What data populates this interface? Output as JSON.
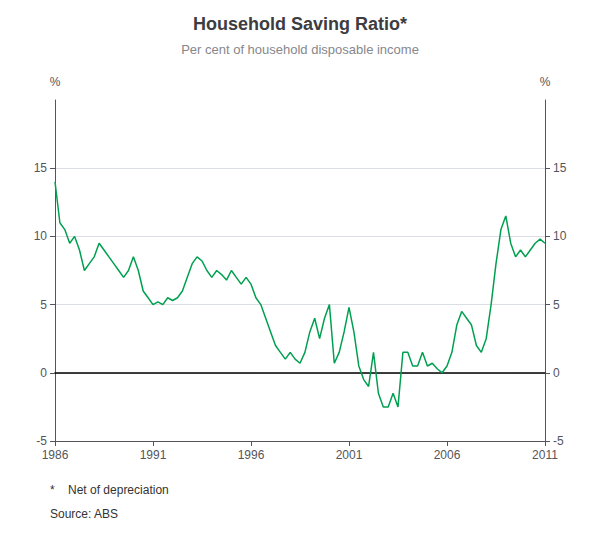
{
  "chart_data": {
    "type": "line",
    "title": "Household Saving Ratio*",
    "subtitle": "Per cent of household disposable income",
    "ylabel": "%",
    "y2label": "%",
    "annotations": [
      "*    Net of depreciation",
      "Source: ABS"
    ],
    "color": "#00A050",
    "grid": true,
    "xlim": [
      1986,
      2011
    ],
    "xticks": [
      1986,
      1991,
      1996,
      2001,
      2006,
      2011
    ],
    "ylim": [
      -5,
      20
    ],
    "yticks": [
      -5,
      0,
      5,
      10,
      15
    ],
    "y2lim": [
      -5,
      20
    ],
    "y2ticks": [
      -5,
      0,
      5,
      10,
      15
    ],
    "x": [
      1986.0,
      1986.25,
      1986.5,
      1986.75,
      1987.0,
      1987.25,
      1987.5,
      1987.75,
      1988.0,
      1988.25,
      1988.5,
      1988.75,
      1989.0,
      1989.25,
      1989.5,
      1989.75,
      1990.0,
      1990.25,
      1990.5,
      1990.75,
      1991.0,
      1991.25,
      1991.5,
      1991.75,
      1992.0,
      1992.25,
      1992.5,
      1992.75,
      1993.0,
      1993.25,
      1993.5,
      1993.75,
      1994.0,
      1994.25,
      1994.5,
      1994.75,
      1995.0,
      1995.25,
      1995.5,
      1995.75,
      1996.0,
      1996.25,
      1996.5,
      1996.75,
      1997.0,
      1997.25,
      1997.5,
      1997.75,
      1998.0,
      1998.25,
      1998.5,
      1998.75,
      1999.0,
      1999.25,
      1999.5,
      1999.75,
      2000.0,
      2000.25,
      2000.5,
      2000.75,
      2001.0,
      2001.25,
      2001.5,
      2001.75,
      2002.0,
      2002.25,
      2002.5,
      2002.75,
      2003.0,
      2003.25,
      2003.5,
      2003.75,
      2004.0,
      2004.25,
      2004.5,
      2004.75,
      2005.0,
      2005.25,
      2005.5,
      2005.75,
      2006.0,
      2006.25,
      2006.5,
      2006.75,
      2007.0,
      2007.25,
      2007.5,
      2007.75,
      2008.0,
      2008.25,
      2008.5,
      2008.75,
      2009.0,
      2009.25,
      2009.5,
      2009.75,
      2010.0,
      2010.25,
      2010.5,
      2010.75,
      2011.0
    ],
    "values": [
      14.0,
      11.0,
      10.5,
      9.5,
      10.0,
      9.0,
      7.5,
      8.0,
      8.5,
      9.5,
      9.0,
      8.5,
      8.0,
      7.5,
      7.0,
      7.5,
      8.5,
      7.5,
      6.0,
      5.5,
      5.0,
      5.2,
      5.0,
      5.5,
      5.3,
      5.5,
      6.0,
      7.0,
      8.0,
      8.5,
      8.2,
      7.5,
      7.0,
      7.5,
      7.2,
      6.8,
      7.5,
      7.0,
      6.5,
      7.0,
      6.5,
      5.5,
      5.0,
      4.0,
      3.0,
      2.0,
      1.5,
      1.0,
      1.5,
      1.0,
      0.7,
      1.5,
      3.0,
      4.0,
      2.5,
      4.0,
      5.0,
      0.7,
      1.5,
      3.0,
      4.8,
      3.0,
      0.5,
      -0.5,
      -1.0,
      1.5,
      -1.5,
      -2.5,
      -2.5,
      -1.5,
      -2.5,
      1.5,
      1.5,
      0.5,
      0.5,
      1.5,
      0.5,
      0.7,
      0.3,
      0.0,
      0.5,
      1.5,
      3.5,
      4.5,
      4.0,
      3.5,
      2.0,
      1.5,
      2.5,
      5.0,
      8.0,
      10.5,
      11.5,
      9.5,
      8.5,
      9.0,
      8.5,
      9.0,
      9.5,
      9.8,
      9.5
    ]
  }
}
